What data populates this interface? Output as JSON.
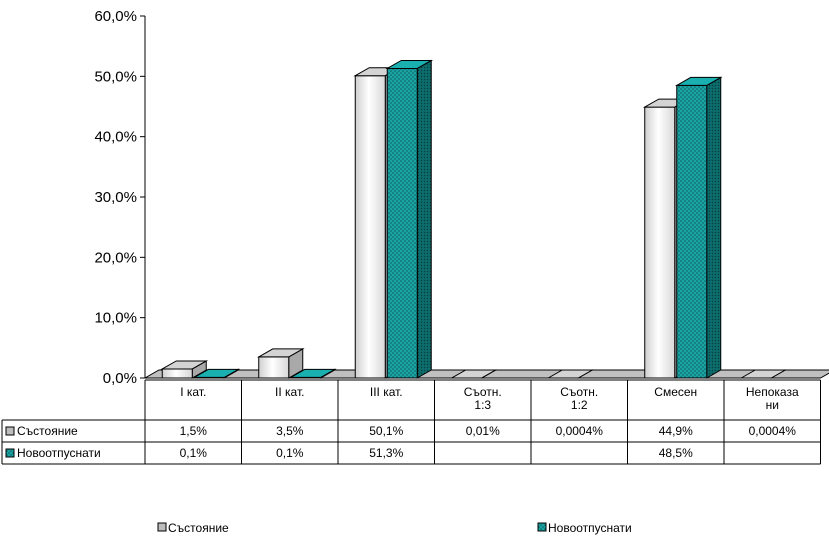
{
  "chart_data": {
    "type": "bar",
    "categories": [
      [
        "I кат."
      ],
      [
        "II кат."
      ],
      [
        "III кат."
      ],
      [
        "Съотн.",
        "1:3"
      ],
      [
        "Съотн.",
        "1:2"
      ],
      [
        "Смесен"
      ],
      [
        "Непоказа",
        "ни"
      ]
    ],
    "ylim": [
      0,
      60
    ],
    "yticks": [
      "0,0%",
      "10,0%",
      "20,0%",
      "30,0%",
      "40,0%",
      "50,0%",
      "60,0%"
    ],
    "series": [
      {
        "name": "Състояние",
        "values": [
          1.5,
          3.5,
          50.1,
          0.01,
          0.0004,
          44.9,
          0.0004
        ],
        "labels": [
          "1,5%",
          "3,5%",
          "50,1%",
          "0,01%",
          "0,0004%",
          "44,9%",
          "0,0004%"
        ],
        "color": "#e8e8e8"
      },
      {
        "name": "Новоотпуснати",
        "values": [
          0.1,
          0.1,
          51.3,
          null,
          null,
          48.5,
          null
        ],
        "labels": [
          "0,1%",
          "0,1%",
          "51,3%",
          "",
          "",
          "48,5%",
          ""
        ],
        "color": "#1a8c8c"
      }
    ],
    "data_table": true,
    "legend": "bottom",
    "grid": false,
    "style": "3d-column"
  }
}
